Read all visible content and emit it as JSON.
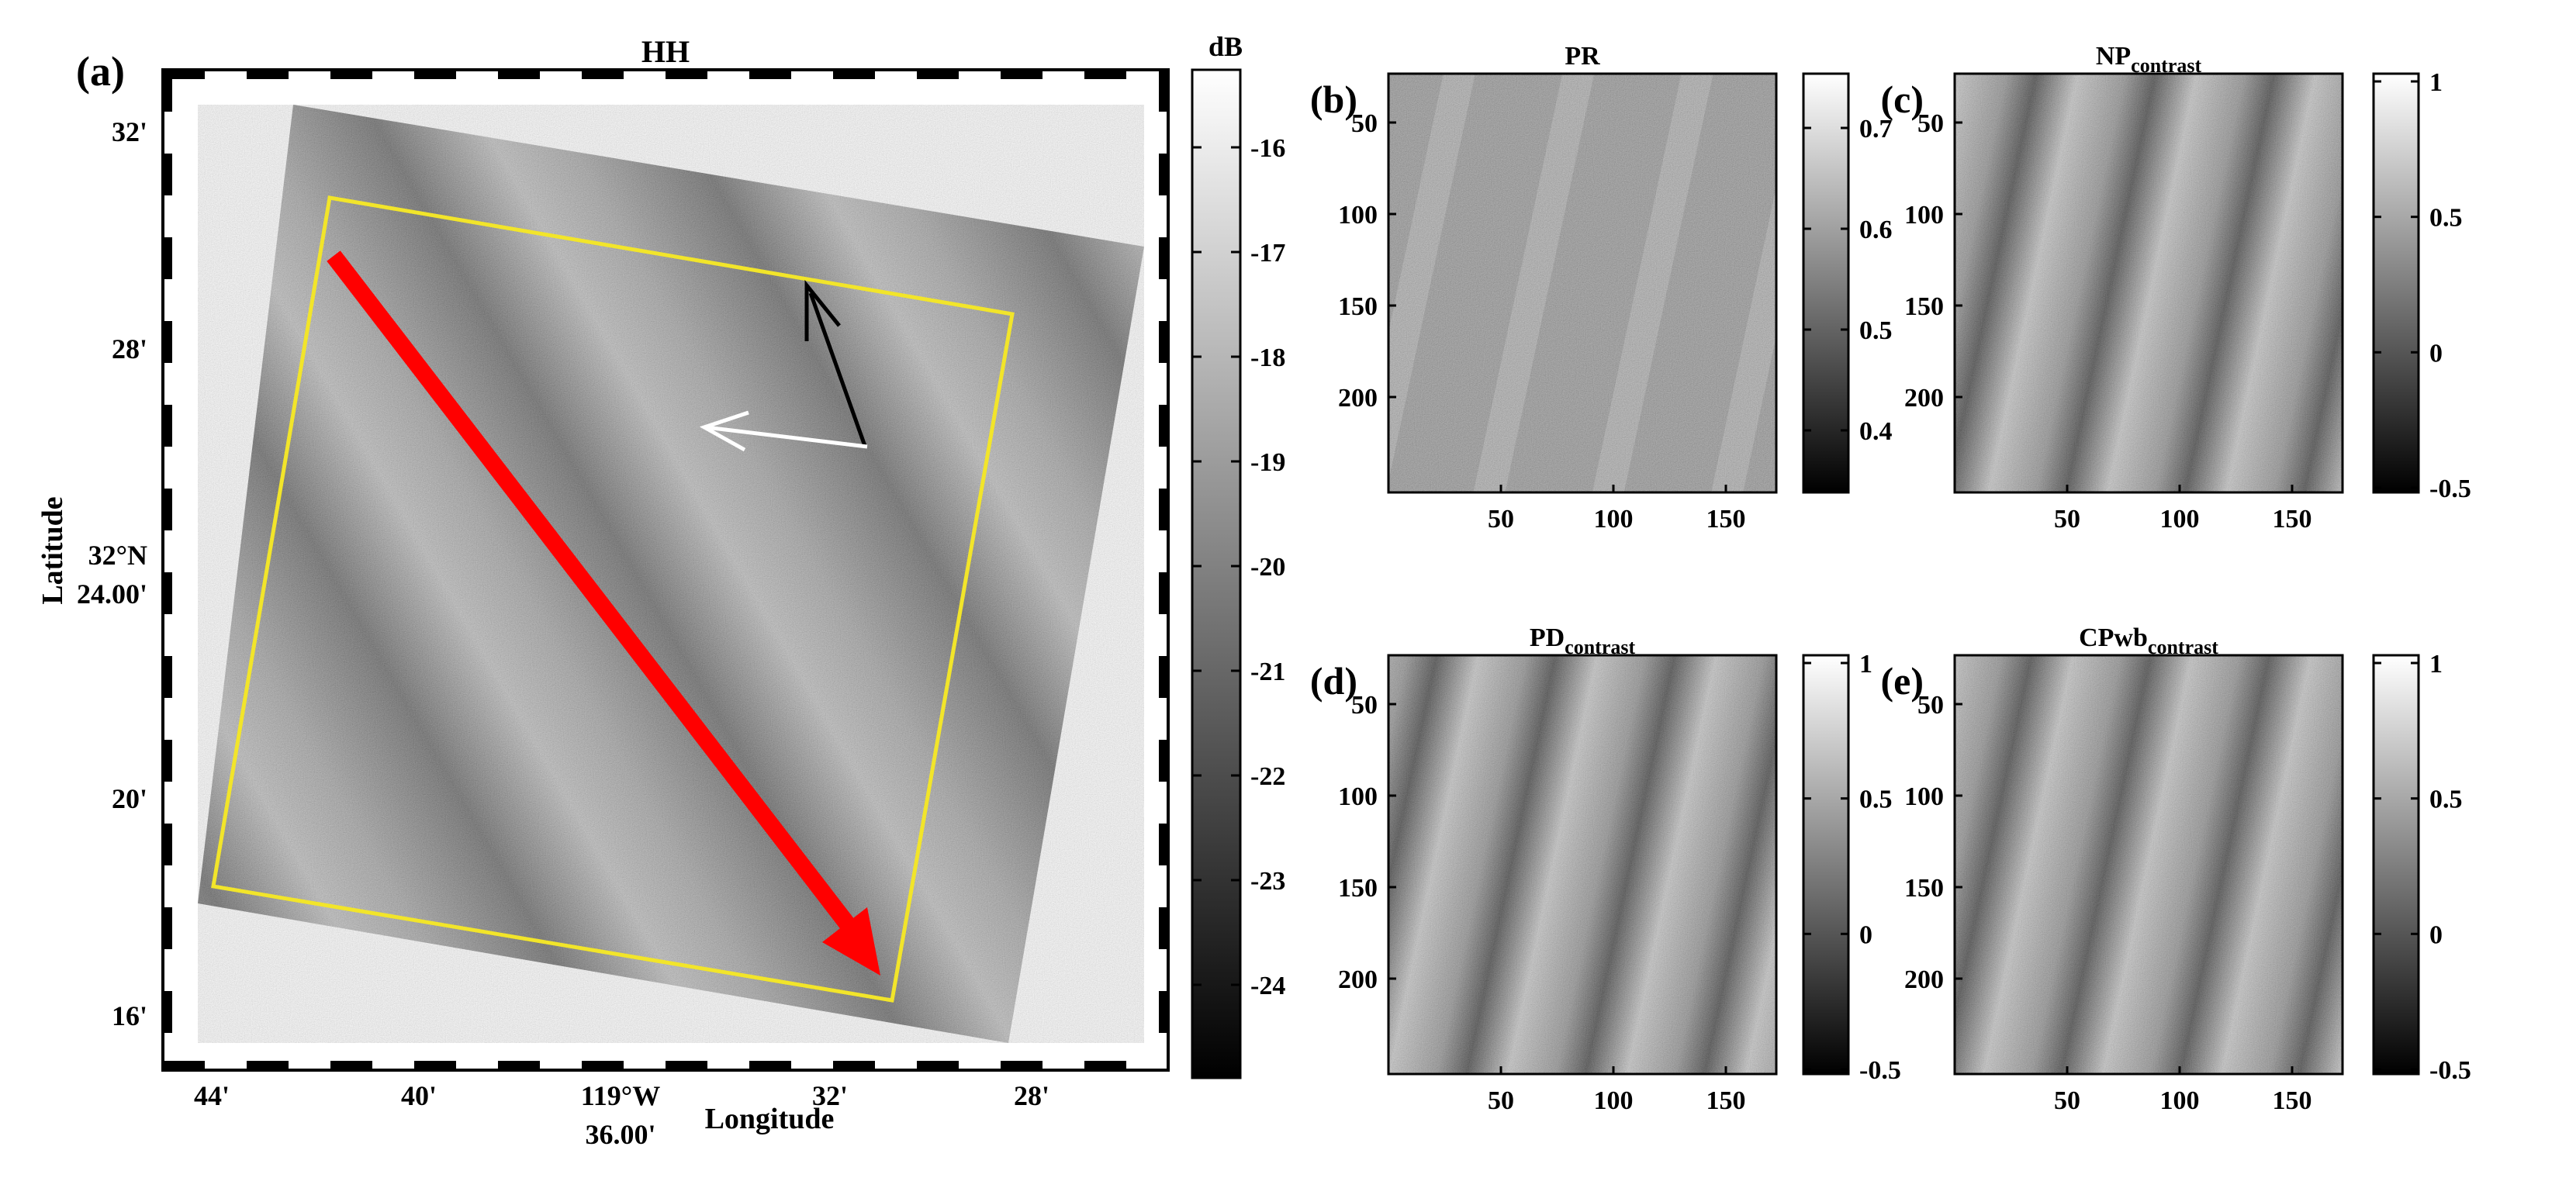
{
  "panel_a": {
    "letter": "(a)",
    "title": "HH",
    "ylabel": "Latitude",
    "xlabel": "Longitude",
    "lat_ticks": [
      "32'",
      "28'",
      "32°N",
      "24.00'",
      "20'",
      "16'"
    ],
    "lon_ticks": [
      "44'",
      "40'",
      "119°W",
      "36.00'",
      "32'",
      "28'"
    ],
    "colorbar": {
      "unit": "dB",
      "ticks": [
        "-16",
        "-17",
        "-18",
        "-19",
        "-20",
        "-21",
        "-22",
        "-23",
        "-24"
      ]
    },
    "colors": {
      "box": "#f2e52a",
      "big_arrow": "#ff0000",
      "arrow_dark": "#000000",
      "arrow_light": "#ffffff"
    }
  },
  "small_panels": [
    {
      "letter": "(b)",
      "title": "PR",
      "sub": "",
      "cbar_ticks": [
        "0.7",
        "0.6",
        "0.5",
        "0.4"
      ],
      "y_ticks": [
        "50",
        "100",
        "150",
        "200"
      ],
      "x_ticks": [
        "50",
        "100",
        "150"
      ]
    },
    {
      "letter": "(c)",
      "title": "NP",
      "sub": "contrast",
      "cbar_ticks": [
        "1",
        "0.5",
        "0",
        "-0.5"
      ],
      "y_ticks": [
        "50",
        "100",
        "150",
        "200"
      ],
      "x_ticks": [
        "50",
        "100",
        "150"
      ]
    },
    {
      "letter": "(d)",
      "title": "PD",
      "sub": "contrast",
      "cbar_ticks": [
        "1",
        "0.5",
        "0",
        "-0.5"
      ],
      "y_ticks": [
        "50",
        "100",
        "150",
        "200"
      ],
      "x_ticks": [
        "50",
        "100",
        "150"
      ]
    },
    {
      "letter": "(e)",
      "title": "CPwb",
      "sub": "contrast",
      "cbar_ticks": [
        "1",
        "0.5",
        "0",
        "-0.5"
      ],
      "y_ticks": [
        "50",
        "100",
        "150",
        "200"
      ],
      "x_ticks": [
        "50",
        "100",
        "150"
      ]
    }
  ]
}
